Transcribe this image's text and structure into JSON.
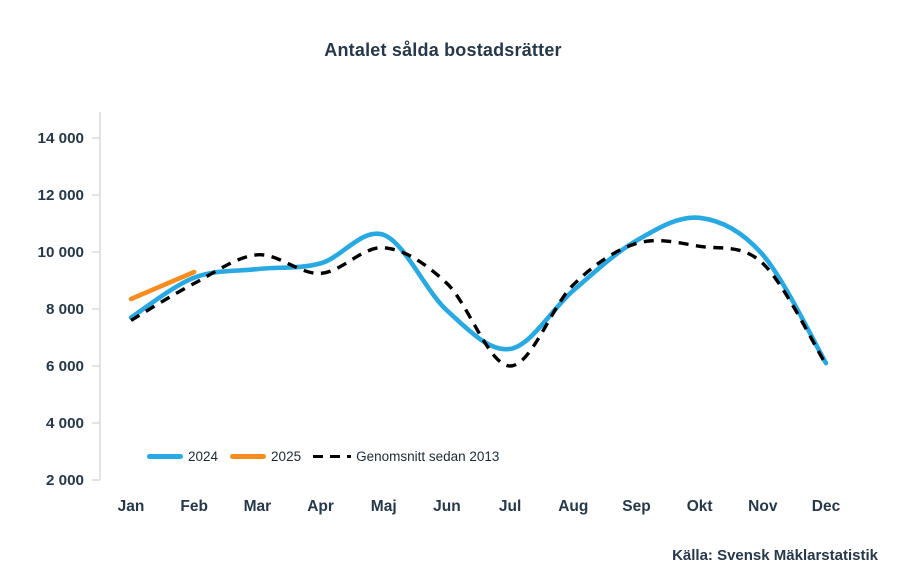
{
  "footer": {
    "source": "Källa: Svensk Mäklarstatistik"
  },
  "colors": {
    "accent_blue": "#29A9E1",
    "accent_orange": "#F68D1E",
    "dashed_black": "#000000",
    "text_navy": "#263849",
    "legend_text": "#1d2b36",
    "axis_gray": "#D9D9D9",
    "background": "#FFFFFF"
  },
  "chart_data": {
    "type": "line",
    "title": "Antalet sålda bostadsrätter",
    "xlabel": "",
    "ylabel": "",
    "grid": false,
    "legend_position": "bottom-left-inside",
    "categories": [
      "Jan",
      "Feb",
      "Mar",
      "Apr",
      "Maj",
      "Jun",
      "Jul",
      "Aug",
      "Sep",
      "Okt",
      "Nov",
      "Dec"
    ],
    "y_axis": {
      "ticks": [
        2000,
        4000,
        6000,
        8000,
        10000,
        12000,
        14000
      ],
      "tick_labels": [
        "2 000",
        "4 000",
        "6 000",
        "8 000",
        "10 000",
        "12 000",
        "14 000"
      ],
      "range": [
        2000,
        14800
      ]
    },
    "series": [
      {
        "name": "2024",
        "color": "#29A9E1",
        "line_style": "solid",
        "values": [
          7700,
          9100,
          9400,
          9600,
          10600,
          7950,
          6600,
          8650,
          10400,
          11200,
          9900,
          6100
        ]
      },
      {
        "name": "2025",
        "color": "#F68D1E",
        "line_style": "solid",
        "values": [
          8350,
          9300
        ]
      },
      {
        "name": "Genomsnitt sedan 2013",
        "color": "#000000",
        "line_style": "dashed",
        "values": [
          7600,
          8900,
          9900,
          9250,
          10150,
          8900,
          6000,
          8850,
          10300,
          10200,
          9600,
          6050
        ]
      }
    ]
  }
}
